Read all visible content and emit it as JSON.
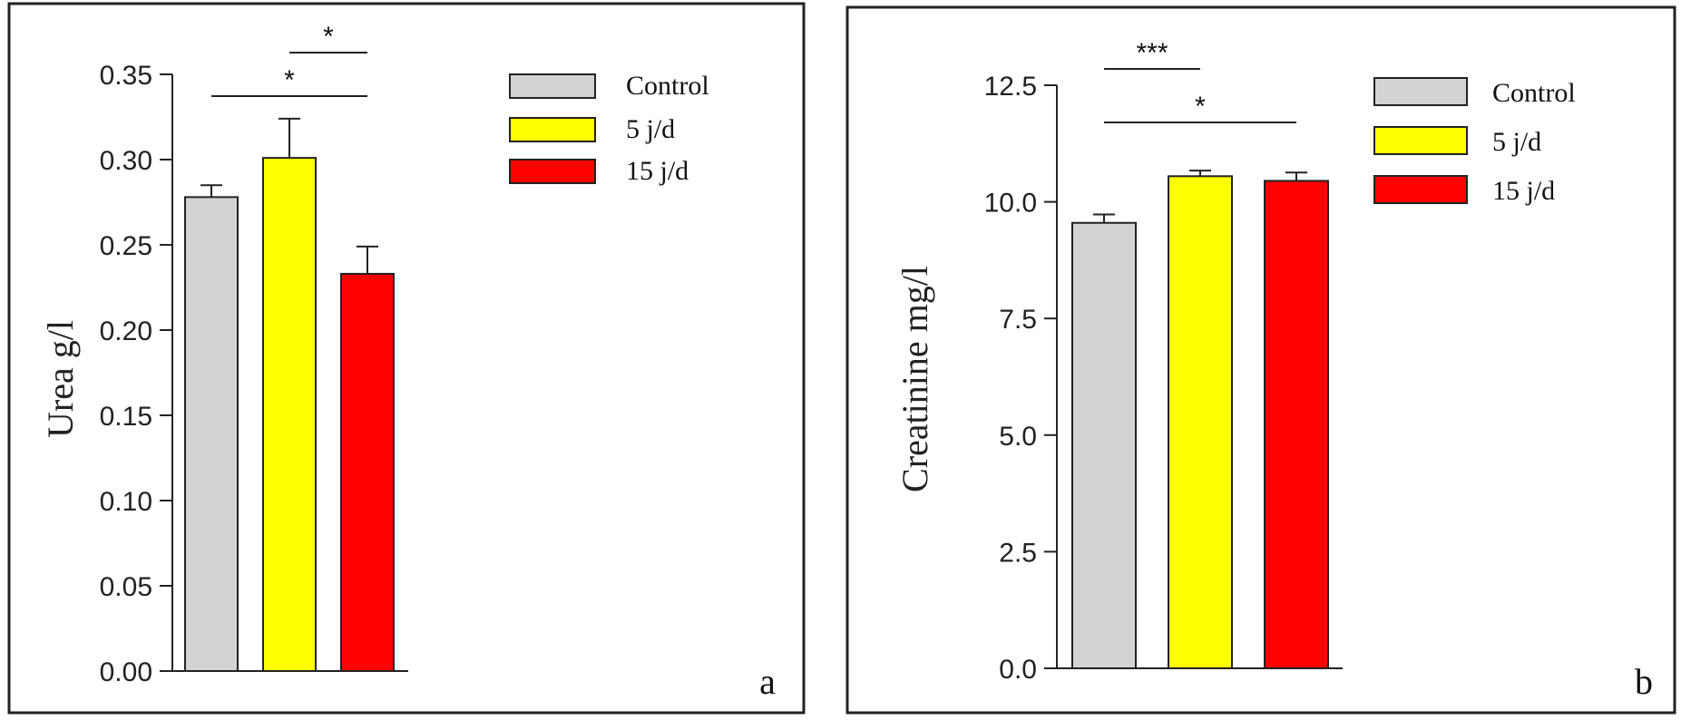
{
  "chart_data": [
    {
      "type": "bar",
      "panel_label": "a",
      "ylabel": "Urea  g/l",
      "ylim": [
        0,
        0.35
      ],
      "yticks": [
        "0.00",
        "0.05",
        "0.10",
        "0.15",
        "0.20",
        "0.25",
        "0.30",
        "0.35"
      ],
      "categories": [
        "Control",
        "5 j/d",
        "15 j/d"
      ],
      "values": [
        0.278,
        0.301,
        0.233
      ],
      "errors": [
        0.007,
        0.023,
        0.016
      ],
      "colors": [
        "#d3d3d3",
        "#ffff00",
        "#ff0000"
      ],
      "legend": [
        "Control",
        "5 j/d",
        "15 j/d"
      ],
      "legend_position": "top-right",
      "significance": [
        {
          "from": 1,
          "to": 2,
          "label": "*"
        },
        {
          "from": 0,
          "to": 2,
          "label": "*"
        }
      ]
    },
    {
      "type": "bar",
      "panel_label": "b",
      "ylabel": "Creatinine   mg/l",
      "ylim": [
        0,
        12.5
      ],
      "yticks": [
        "0.0",
        "2.5",
        "5.0",
        "7.5",
        "10.0",
        "12.5"
      ],
      "categories": [
        "Control",
        "5 j/d",
        "15 j/d"
      ],
      "values": [
        9.55,
        10.55,
        10.45
      ],
      "errors": [
        0.18,
        0.12,
        0.18
      ],
      "colors": [
        "#d3d3d3",
        "#ffff00",
        "#ff0000"
      ],
      "legend": [
        "Control",
        "5 j/d",
        "15 j/d"
      ],
      "legend_position": "top-right",
      "significance": [
        {
          "from": 0,
          "to": 1,
          "label": "***"
        },
        {
          "from": 0,
          "to": 2,
          "label": "*"
        }
      ]
    }
  ]
}
